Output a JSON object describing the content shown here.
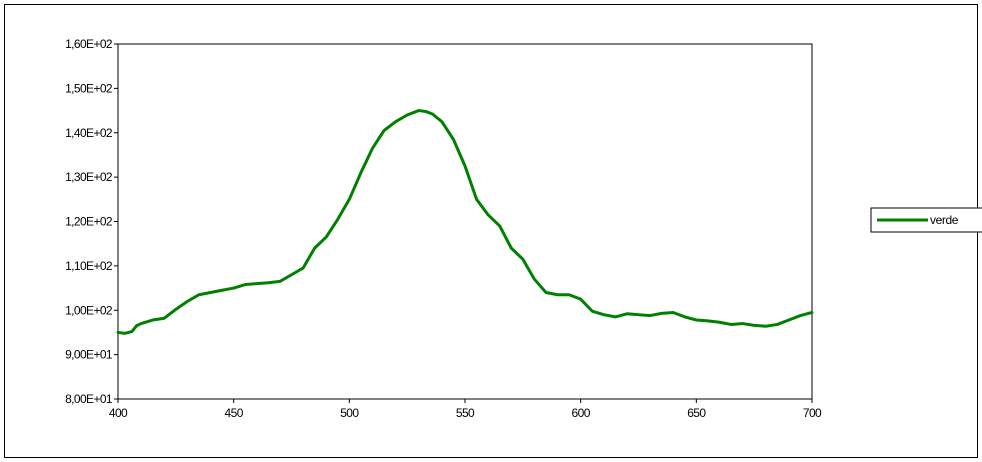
{
  "chart_data": {
    "type": "line",
    "title": "",
    "xlabel": "",
    "ylabel": "",
    "xlim": [
      400,
      700
    ],
    "ylim": [
      80,
      160
    ],
    "x_ticks": [
      400,
      450,
      500,
      550,
      600,
      650,
      700
    ],
    "x_tick_labels": [
      "400",
      "450",
      "500",
      "550",
      "600",
      "650",
      "700"
    ],
    "y_ticks": [
      80,
      90,
      100,
      110,
      120,
      130,
      140,
      150,
      160
    ],
    "y_tick_labels": [
      "8,00E+01",
      "9,00E+01",
      "1,00E+02",
      "1,10E+02",
      "1,20E+02",
      "1,30E+02",
      "1,40E+02",
      "1,50E+02",
      "1,60E+02"
    ],
    "grid": false,
    "legend_position": "right",
    "series": [
      {
        "name": "verde",
        "color": "#008000",
        "x": [
          400,
          403,
          406,
          408,
          410,
          415,
          420,
          425,
          430,
          435,
          440,
          445,
          450,
          455,
          460,
          465,
          470,
          475,
          480,
          485,
          490,
          495,
          500,
          505,
          510,
          515,
          520,
          525,
          530,
          533,
          536,
          540,
          545,
          550,
          555,
          560,
          565,
          570,
          575,
          580,
          585,
          590,
          595,
          600,
          605,
          610,
          615,
          620,
          625,
          630,
          635,
          640,
          645,
          650,
          655,
          660,
          665,
          670,
          675,
          680,
          685,
          690,
          695,
          700
        ],
        "y": [
          95,
          94.8,
          95.2,
          96.5,
          97,
          97.8,
          98.2,
          100.2,
          102,
          103.5,
          104,
          104.5,
          105,
          105.8,
          106,
          106.2,
          106.5,
          108,
          109.5,
          114,
          116.5,
          120.5,
          125,
          131,
          136.5,
          140.5,
          142.5,
          144,
          145,
          144.8,
          144.2,
          142.5,
          138.5,
          132.5,
          125,
          121.5,
          119,
          114,
          111.5,
          107,
          104,
          103.5,
          103.5,
          102.5,
          99.8,
          99,
          98.5,
          99.2,
          99,
          98.8,
          99.3,
          99.5,
          98.5,
          97.8,
          97.6,
          97.3,
          96.8,
          97,
          96.6,
          96.4,
          96.8,
          97.8,
          98.8,
          99.5
        ]
      }
    ]
  }
}
